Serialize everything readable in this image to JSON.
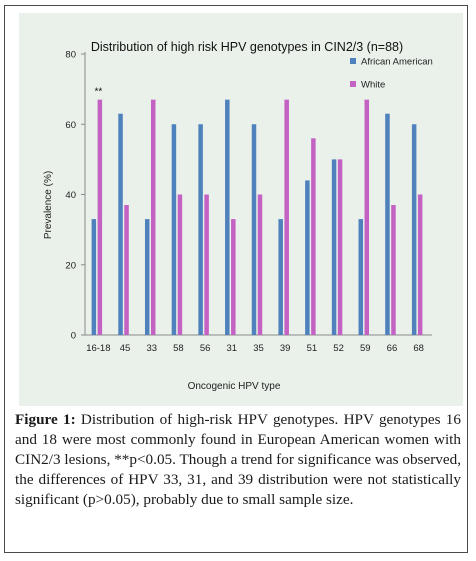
{
  "chart_data": {
    "type": "bar",
    "title": "Distribution of high risk HPV genotypes in CIN2/3  (n=88)",
    "xlabel": "Oncogenic HPV type",
    "ylabel": "Prevalence (%)",
    "ylim": [
      0,
      80
    ],
    "yticks": [
      0,
      20,
      40,
      60,
      80
    ],
    "categories": [
      "16-18",
      "45",
      "33",
      "58",
      "56",
      "31",
      "35",
      "39",
      "51",
      "52",
      "59",
      "66",
      "68"
    ],
    "series": [
      {
        "name": "African American",
        "color": "#4f81bd",
        "values": [
          33,
          63,
          33,
          60,
          60,
          67,
          60,
          33,
          44,
          50,
          33,
          63,
          60
        ]
      },
      {
        "name": "White",
        "color": "#c462c4",
        "values": [
          67,
          37,
          67,
          40,
          40,
          33,
          40,
          67,
          56,
          50,
          67,
          37,
          40
        ]
      }
    ],
    "annotations": [
      {
        "category": "16-18",
        "text": "**"
      }
    ],
    "legend": "top-right",
    "grid": false,
    "background": "#eaf1ea"
  },
  "caption": {
    "label": "Figure 1:",
    "text": " Distribution of high-risk HPV genotypes. HPV genotypes 16 and 18 were most commonly found in European American women with CIN2/3 lesions, **p<0.05. Though a trend for significance was observed, the differences of HPV 33, 31, and 39 distribution were not statistically significant (p>0.05), probably due to small sample size."
  }
}
